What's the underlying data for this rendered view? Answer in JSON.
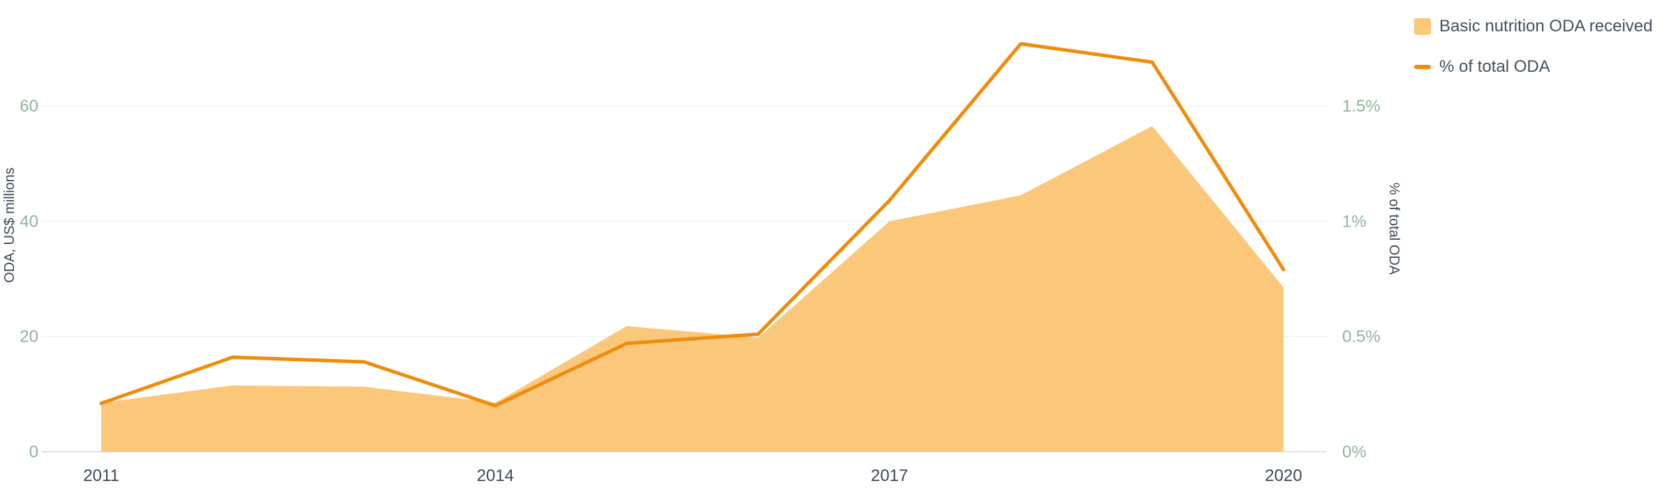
{
  "chart_data": {
    "type": "area",
    "x": [
      2011,
      2012,
      2013,
      2014,
      2015,
      2016,
      2017,
      2018,
      2019,
      2020
    ],
    "x_tick_labels": [
      "2011",
      "2014",
      "2017",
      "2020"
    ],
    "x_tick_values": [
      2011,
      2014,
      2017,
      2020
    ],
    "series": [
      {
        "name": "Basic nutrition ODA received",
        "kind": "area",
        "axis": "left",
        "color": "#fbc77b",
        "values": [
          8.5,
          11.5,
          11.3,
          8.5,
          21.8,
          19.8,
          40.0,
          44.5,
          56.5,
          28.5
        ]
      },
      {
        "name": "% of total ODA",
        "kind": "line",
        "axis": "right",
        "color": "#ef8c0b",
        "values": [
          0.21,
          0.41,
          0.39,
          0.2,
          0.47,
          0.51,
          1.09,
          1.77,
          1.69,
          0.79
        ]
      }
    ],
    "y_left": {
      "label": "ODA, US$ millions",
      "ylim": [
        0,
        75
      ],
      "ticks": [
        0,
        20,
        40,
        60
      ],
      "tick_labels": [
        "0",
        "20",
        "40",
        "60"
      ]
    },
    "y_right": {
      "label": "% of total ODA",
      "ylim": [
        0,
        1.875
      ],
      "ticks": [
        0,
        0.5,
        1,
        1.5
      ],
      "tick_labels": [
        "0%",
        "0.5%",
        "1%",
        "1.5%"
      ]
    },
    "grid": true,
    "legend_position": "top-right"
  }
}
